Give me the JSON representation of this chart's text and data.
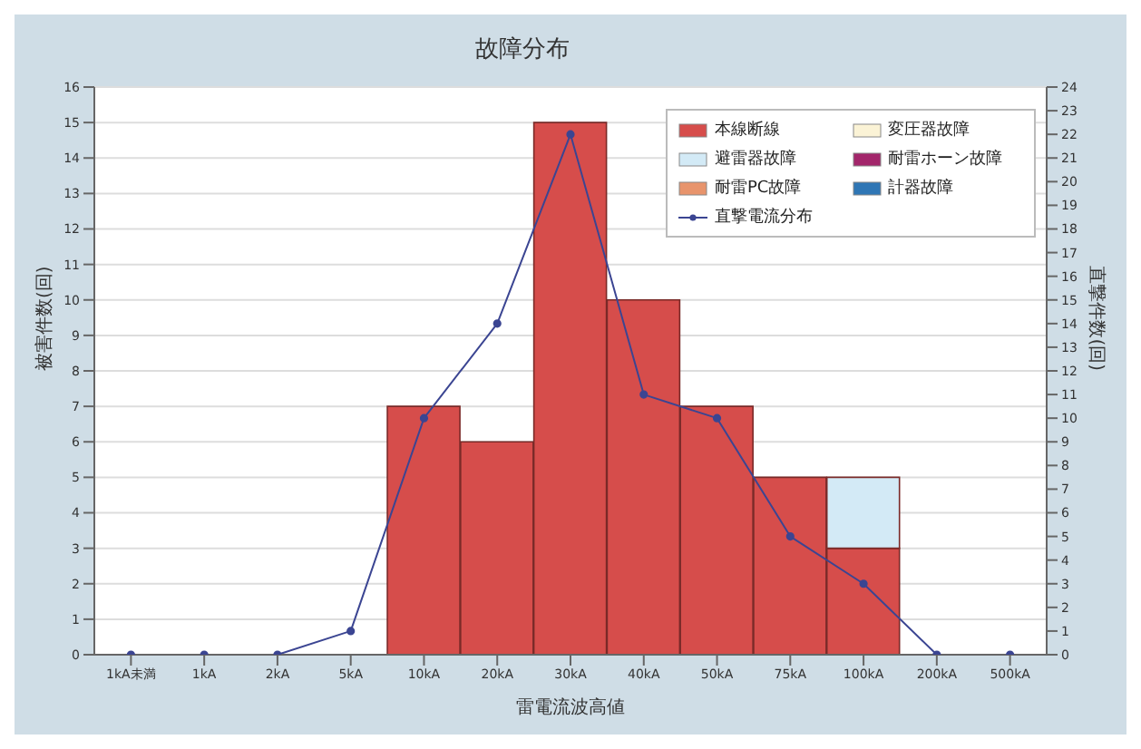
{
  "chart_data": {
    "type": "bar",
    "title": "故障分布",
    "xlabel": "雷電流波高値",
    "ylabel": "被害件数(回)",
    "y2label": "直撃件数(回)",
    "categories": [
      "1kA未満",
      "1kA",
      "2kA",
      "5kA",
      "10kA",
      "20kA",
      "30kA",
      "40kA",
      "50kA",
      "75kA",
      "100kA",
      "200kA",
      "500kA"
    ],
    "stacked": true,
    "series": [
      {
        "name": "本線断線",
        "color": "#d64d4b",
        "values": [
          0,
          0,
          0,
          0,
          7,
          6,
          15,
          10,
          7,
          5,
          3,
          0,
          0
        ]
      },
      {
        "name": "変圧器故障",
        "color": "#fbf3d6",
        "values": [
          0,
          0,
          0,
          0,
          0,
          0,
          0,
          0,
          0,
          0,
          0,
          0,
          0
        ]
      },
      {
        "name": "避雷器故障",
        "color": "#d3eaf6",
        "values": [
          0,
          0,
          0,
          0,
          0,
          0,
          0,
          0,
          0,
          0,
          2,
          0,
          0
        ]
      },
      {
        "name": "耐雷ホーン故障",
        "color": "#a3266b",
        "values": [
          0,
          0,
          0,
          0,
          0,
          0,
          0,
          0,
          0,
          0,
          0,
          0,
          0
        ]
      },
      {
        "name": "耐雷PC故障",
        "color": "#e8946c",
        "values": [
          0,
          0,
          0,
          0,
          0,
          0,
          0,
          0,
          0,
          0,
          0,
          0,
          0
        ]
      },
      {
        "name": "計器故障",
        "color": "#2f76b5",
        "values": [
          0,
          0,
          0,
          0,
          0,
          0,
          0,
          0,
          0,
          0,
          0,
          0,
          0
        ]
      },
      {
        "name": "直撃電流分布",
        "type": "line",
        "axis": "y2",
        "color": "#3b4592",
        "marker": "circle",
        "values": [
          0,
          0,
          0,
          1,
          10,
          14,
          22,
          11,
          10,
          5,
          3,
          0,
          0
        ]
      }
    ],
    "ylim": [
      0,
      16
    ],
    "yticks": [
      0,
      1,
      2,
      3,
      4,
      5,
      6,
      7,
      8,
      9,
      10,
      11,
      12,
      13,
      14,
      15,
      16
    ],
    "y2lim": [
      0,
      24
    ],
    "y2ticks": [
      0,
      1,
      2,
      3,
      4,
      5,
      6,
      7,
      8,
      9,
      10,
      11,
      12,
      13,
      14,
      15,
      16,
      17,
      18,
      19,
      20,
      21,
      22,
      23,
      24
    ],
    "grid": "y",
    "legend": "top right"
  }
}
